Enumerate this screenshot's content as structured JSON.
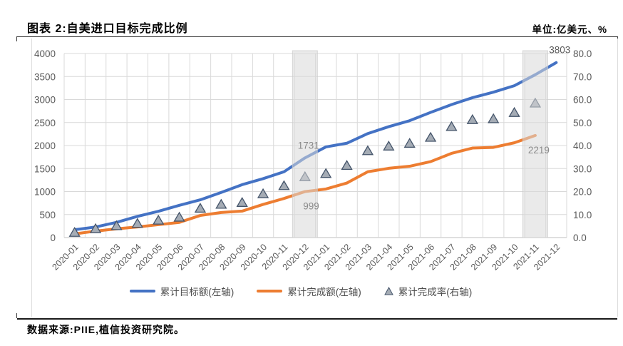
{
  "header": {
    "title": "图表 2:自美进口目标完成比例",
    "unit": "单位:亿美元、%"
  },
  "footer": {
    "source": "数据来源:PIIE,植信投资研究院。"
  },
  "legend": {
    "items": [
      {
        "label": "累计目标额(左轴)",
        "type": "line",
        "color": "#4472C4"
      },
      {
        "label": "累计完成额(左轴)",
        "type": "line",
        "color": "#ED7D31"
      },
      {
        "label": "累计完成率(右轴)",
        "type": "triangle",
        "color": "#A5ACB5",
        "border": "#44546A"
      }
    ]
  },
  "chart_data": {
    "type": "line",
    "title": "自美进口目标完成比例",
    "grid": true,
    "categories": [
      "2020-01",
      "2020-02",
      "2020-03",
      "2020-04",
      "2020-05",
      "2020-06",
      "2020-07",
      "2020-08",
      "2020-09",
      "2020-10",
      "2020-11",
      "2020-12",
      "2021-01",
      "2021-02",
      "2021-03",
      "2021-04",
      "2021-05",
      "2021-06",
      "2021-07",
      "2021-08",
      "2021-09",
      "2021-10",
      "2021-11",
      "2021-12"
    ],
    "left_axis": {
      "min": 0,
      "max": 4000,
      "step": 500,
      "ticks": [
        "0",
        "500",
        "1000",
        "1500",
        "2000",
        "2500",
        "3000",
        "3500",
        "4000"
      ]
    },
    "right_axis": {
      "min": 0,
      "max": 80,
      "step": 10,
      "ticks": [
        "0.0",
        "10.0",
        "20.0",
        "30.0",
        "40.0",
        "50.0",
        "60.0",
        "70.0",
        "80.0"
      ]
    },
    "series": [
      {
        "name": "累计目标额(左轴)",
        "axis": "left",
        "type": "line",
        "color": "#4472C4",
        "values": [
          170,
          230,
          330,
          460,
          570,
          700,
          820,
          980,
          1150,
          1280,
          1430,
          1731,
          1970,
          2050,
          2260,
          2410,
          2540,
          2720,
          2890,
          3040,
          3160,
          3300,
          3540,
          3803
        ]
      },
      {
        "name": "累计完成额(左轴)",
        "axis": "left",
        "type": "line",
        "color": "#ED7D31",
        "values": [
          80,
          140,
          190,
          230,
          280,
          330,
          480,
          545,
          575,
          720,
          850,
          999,
          1055,
          1185,
          1430,
          1505,
          1550,
          1650,
          1830,
          1945,
          1960,
          2060,
          2219,
          null
        ]
      },
      {
        "name": "累计完成率(右轴)",
        "axis": "right",
        "type": "scatter-triangle",
        "marker_fill": "#A5ACB5",
        "marker_border": "#44546A",
        "values": [
          2.1,
          3.7,
          5.0,
          6.0,
          7.4,
          8.7,
          12.6,
          14.3,
          15.1,
          18.9,
          22.4,
          26.3,
          27.7,
          31.2,
          37.6,
          39.6,
          40.8,
          43.4,
          48.1,
          51.1,
          51.5,
          54.2,
          58.3,
          null
        ]
      }
    ],
    "annotations": [
      {
        "text": "1731",
        "series_index": 0,
        "month_index": 11,
        "position": "above",
        "color": "#8A8A8A"
      },
      {
        "text": "999",
        "series_index": 1,
        "month_index": 11,
        "position": "below",
        "color": "#8A8A8A"
      },
      {
        "text": "3803",
        "series_index": 0,
        "month_index": 23,
        "position": "above",
        "color": "#595959"
      },
      {
        "text": "2219",
        "series_index": 1,
        "month_index": 22,
        "position": "below",
        "color": "#8A8A8A"
      }
    ],
    "highlight_bands": {
      "month_indices": [
        11,
        22
      ],
      "color": "#D9D9D9"
    }
  }
}
